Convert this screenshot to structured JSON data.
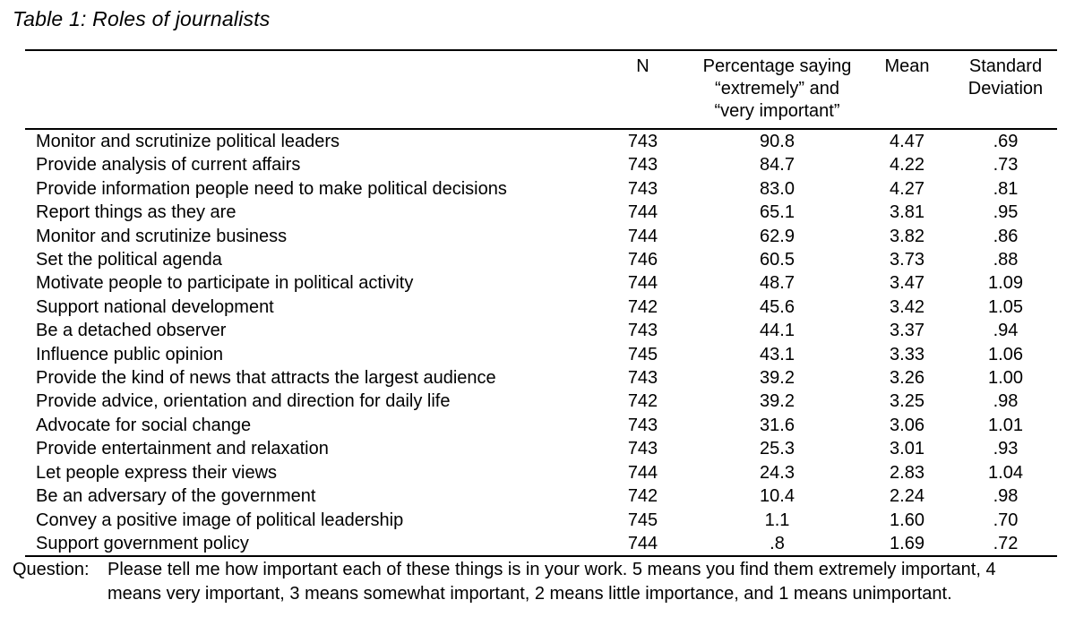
{
  "title": "Table 1: Roles of journalists",
  "table": {
    "headers": {
      "role": "",
      "n": "N",
      "pct": "Percentage saying\n“extremely” and\n“very important”",
      "mean": "Mean",
      "sd": "Standard\nDeviation"
    },
    "rows": [
      {
        "label": "Monitor and scrutinize political leaders",
        "n": "743",
        "pct": "90.8",
        "mean": "4.47",
        "sd": ".69"
      },
      {
        "label": "Provide analysis of current affairs",
        "n": "743",
        "pct": "84.7",
        "mean": "4.22",
        "sd": ".73"
      },
      {
        "label": "Provide information people need to make political decisions",
        "n": "743",
        "pct": "83.0",
        "mean": "4.27",
        "sd": ".81"
      },
      {
        "label": "Report things as they are",
        "n": "744",
        "pct": "65.1",
        "mean": "3.81",
        "sd": ".95"
      },
      {
        "label": "Monitor and scrutinize business",
        "n": "744",
        "pct": "62.9",
        "mean": "3.82",
        "sd": ".86"
      },
      {
        "label": "Set the political agenda",
        "n": "746",
        "pct": "60.5",
        "mean": "3.73",
        "sd": ".88"
      },
      {
        "label": "Motivate people to participate in political activity",
        "n": "744",
        "pct": "48.7",
        "mean": "3.47",
        "sd": "1.09"
      },
      {
        "label": "Support national development",
        "n": "742",
        "pct": "45.6",
        "mean": "3.42",
        "sd": "1.05"
      },
      {
        "label": "Be a detached observer",
        "n": "743",
        "pct": "44.1",
        "mean": "3.37",
        "sd": ".94"
      },
      {
        "label": "Influence public opinion",
        "n": "745",
        "pct": "43.1",
        "mean": "3.33",
        "sd": "1.06"
      },
      {
        "label": "Provide the kind of news that attracts the largest audience",
        "n": "743",
        "pct": "39.2",
        "mean": "3.26",
        "sd": "1.00"
      },
      {
        "label": "Provide advice, orientation and direction for daily life",
        "n": "742",
        "pct": "39.2",
        "mean": "3.25",
        "sd": ".98"
      },
      {
        "label": "Advocate for social change",
        "n": "743",
        "pct": "31.6",
        "mean": "3.06",
        "sd": "1.01"
      },
      {
        "label": "Provide entertainment and relaxation",
        "n": "743",
        "pct": "25.3",
        "mean": "3.01",
        "sd": ".93"
      },
      {
        "label": "Let people express their views",
        "n": "744",
        "pct": "24.3",
        "mean": "2.83",
        "sd": "1.04"
      },
      {
        "label": "Be an adversary of the government",
        "n": "742",
        "pct": "10.4",
        "mean": "2.24",
        "sd": ".98"
      },
      {
        "label": "Convey a positive image of political leadership",
        "n": "745",
        "pct": "1.1",
        "mean": "1.60",
        "sd": ".70"
      },
      {
        "label": "Support government policy",
        "n": "744",
        "pct": ".8",
        "mean": "1.69",
        "sd": ".72"
      }
    ]
  },
  "footnote": {
    "label": "Question:",
    "text": "Please tell me how important each of these things is in your work. 5 means you find them extremely important, 4\nmeans very important, 3 means somewhat important, 2 means little importance, and 1 means unimportant."
  }
}
